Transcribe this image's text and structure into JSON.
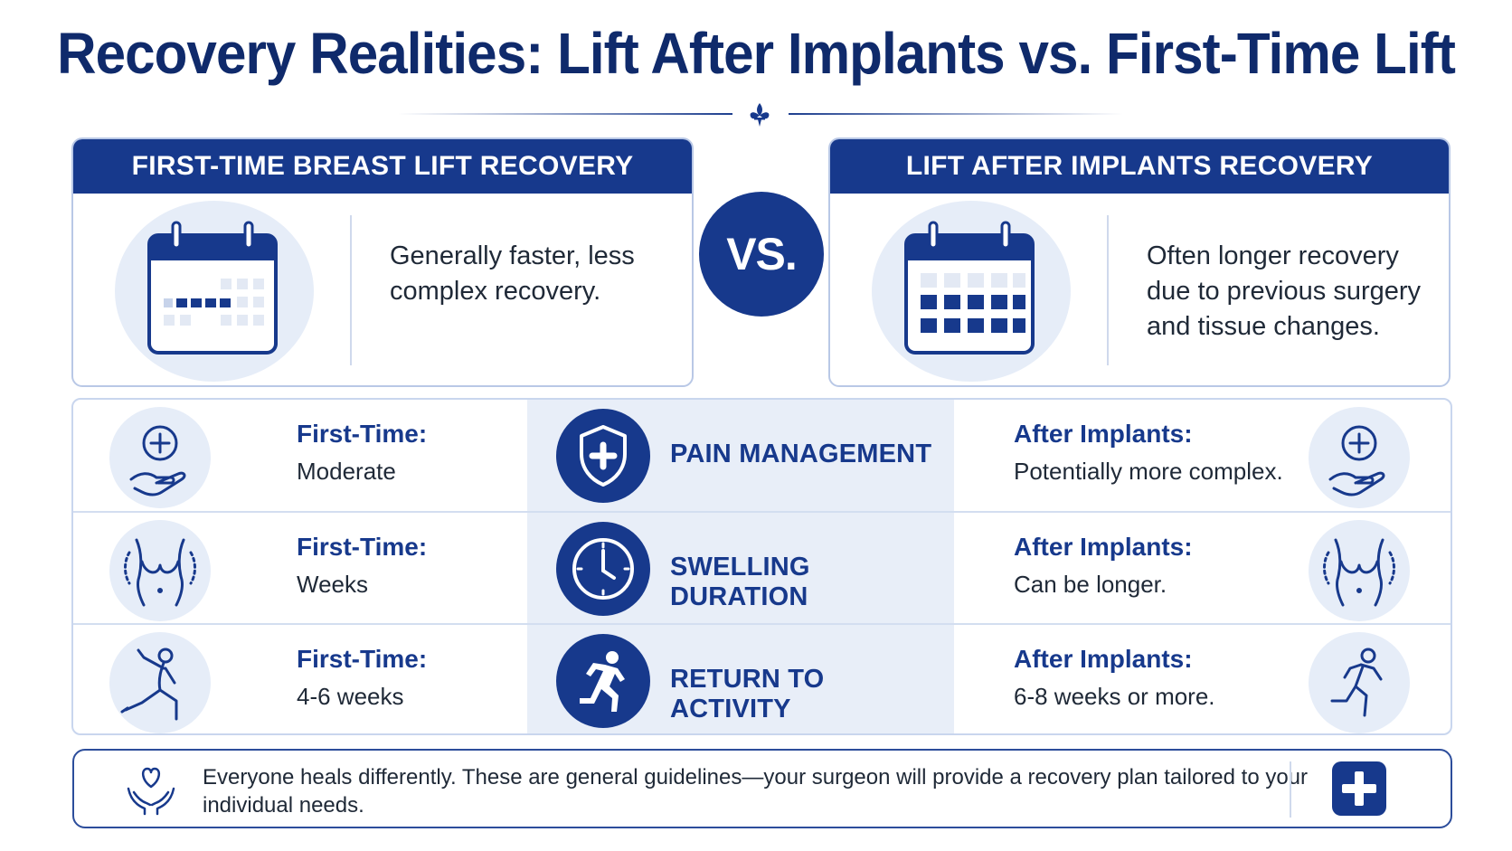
{
  "title": "Recovery Realities: Lift After Implants vs. First-Time Lift",
  "colors": {
    "navy": "#17398c",
    "title_navy": "#0f2a6b",
    "light_blue": "#e6edf8"
  },
  "left_card": {
    "heading": "FIRST-TIME BREAST LIFT RECOVERY",
    "description": "Generally faster, less complex recovery.",
    "icon": "calendar-icon"
  },
  "vs_label": "VS.",
  "right_card": {
    "heading": "LIFT AFTER IMPLANTS RECOVERY",
    "description": "Often longer recovery due to previous surgery and tissue changes.",
    "icon": "calendar-icon"
  },
  "rows": [
    {
      "category": "PAIN MANAGEMENT",
      "center_icon": "shield-plus-icon",
      "first_time_label": "First-Time:",
      "first_time_value": "Moderate",
      "after_label": "After Implants:",
      "after_value": "Potentially more complex.",
      "side_icon": "hand-cross-icon"
    },
    {
      "category": "SWELLING DURATION",
      "center_icon": "clock-icon",
      "first_time_label": "First-Time:",
      "first_time_value": "Weeks",
      "after_label": "After Implants:",
      "after_value": "Can be longer.",
      "side_icon": "torso-icon"
    },
    {
      "category": "RETURN TO ACTIVITY",
      "center_icon": "runner-icon",
      "first_time_label": "First-Time:",
      "first_time_value": "4-6 weeks",
      "after_label": "After Implants:",
      "after_value": "6-8 weeks or more.",
      "side_icon": "exercise-icon"
    }
  ],
  "note": {
    "text": "Everyone heals differently. These are general guidelines—your surgeon will provide a recovery plan tailored to your individual needs.",
    "icon": "heart-hands-icon",
    "badge_icon": "medical-cross-icon"
  }
}
